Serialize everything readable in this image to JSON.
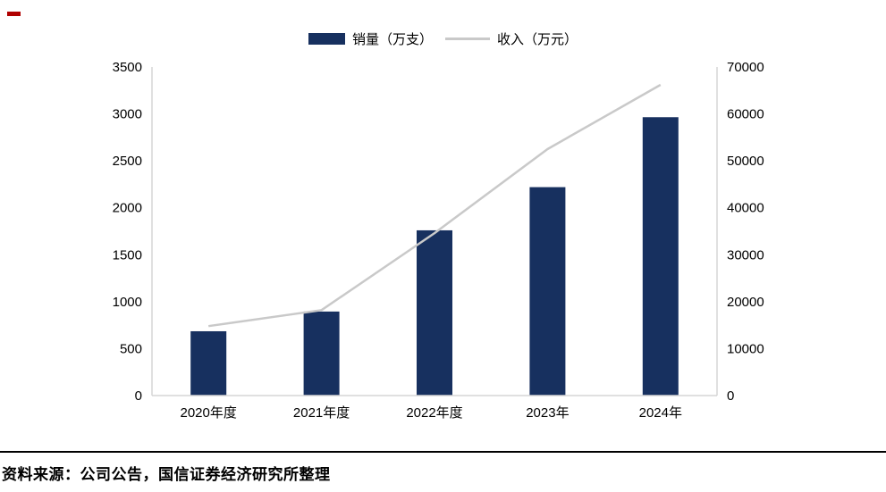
{
  "page": {
    "marker_color": "#b00000"
  },
  "footer": {
    "source": "资料来源：公司公告，国信证券经济研究所整理"
  },
  "chart_data": {
    "type": "bar+line",
    "categories": [
      "2020年度",
      "2021年度",
      "2022年度",
      "2023年",
      "2024年"
    ],
    "series": [
      {
        "name": "销量（万支）",
        "type": "bar",
        "axis": "left",
        "color": "#17305f",
        "values": [
          685,
          895,
          1760,
          2220,
          2965
        ]
      },
      {
        "name": "收入（万元）",
        "type": "line",
        "axis": "right",
        "color": "#c9c9c9",
        "values": [
          14800,
          18200,
          34600,
          52500,
          66200
        ]
      }
    ],
    "left_axis": {
      "min": 0,
      "max": 3500,
      "step": 500,
      "ticks": [
        0,
        500,
        1000,
        1500,
        2000,
        2500,
        3000,
        3500
      ]
    },
    "right_axis": {
      "min": 0,
      "max": 70000,
      "step": 10000,
      "ticks": [
        0,
        10000,
        20000,
        30000,
        40000,
        50000,
        60000,
        70000
      ]
    },
    "axis_color": "#d6d6d6",
    "tick_label_color": "#000000",
    "grid": false,
    "legend_position": "top"
  }
}
